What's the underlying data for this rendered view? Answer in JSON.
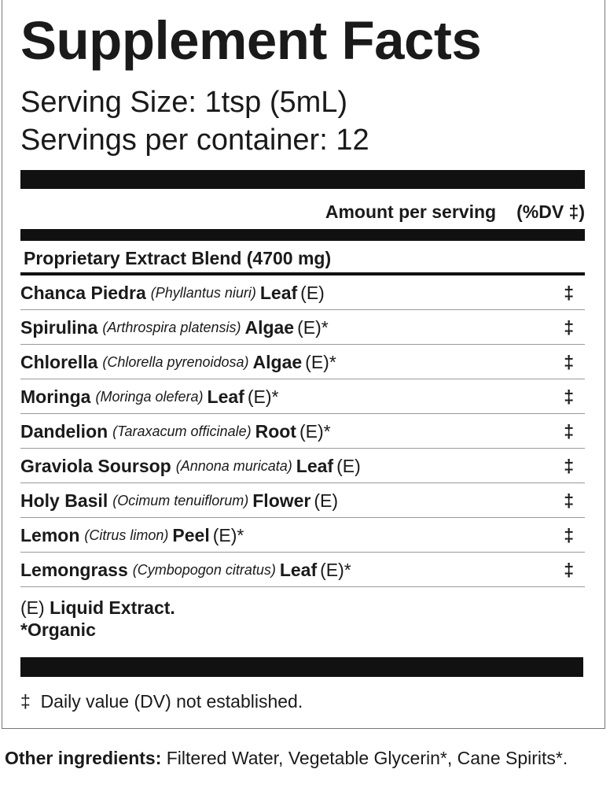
{
  "title": "Supplement Facts",
  "serving_size": "Serving Size: 1tsp (5mL)",
  "servings_label": "Servings per container:",
  "servings_value": "12",
  "header": {
    "amount": "Amount per serving",
    "dv": "(%DV ‡)"
  },
  "blend": "Proprietary Extract Blend (4700 mg)",
  "ingredients": [
    {
      "name": "Chanca Piedra",
      "latin": "(Phyllantus niuri)",
      "part": "Leaf",
      "suffix": "(E)",
      "dv": "‡"
    },
    {
      "name": "Spirulina",
      "latin": "(Arthrospira platensis)",
      "part": "Algae",
      "suffix": "(E)*",
      "dv": "‡"
    },
    {
      "name": "Chlorella",
      "latin": "(Chlorella pyrenoidosa)",
      "part": "Algae",
      "suffix": "(E)*",
      "dv": "‡"
    },
    {
      "name": "Moringa",
      "latin": "(Moringa olefera)",
      "part": "Leaf",
      "suffix": "(E)*",
      "dv": "‡"
    },
    {
      "name": "Dandelion",
      "latin": "(Taraxacum officinale)",
      "part": "Root",
      "suffix": "(E)*",
      "dv": "‡"
    },
    {
      "name": "Graviola Soursop",
      "latin": "(Annona muricata)",
      "part": "Leaf",
      "suffix": "(E)",
      "dv": "‡"
    },
    {
      "name": "Holy Basil",
      "latin": "(Ocimum tenuiflorum)",
      "part": "Flower",
      "suffix": "(E)",
      "dv": "‡"
    },
    {
      "name": "Lemon",
      "latin": "(Citrus limon)",
      "part": "Peel",
      "suffix": "(E)*",
      "dv": "‡"
    },
    {
      "name": "Lemongrass",
      "latin": "(Cymbopogon citratus)",
      "part": "Leaf",
      "suffix": "(E)*",
      "dv": "‡"
    }
  ],
  "footnotes": {
    "e_prefix": "(E)",
    "e_label": "Liquid Extract.",
    "organic": "*Organic"
  },
  "dv_note": "‡  Daily value (DV) not established.",
  "other": {
    "label": "Other ingredients:",
    "text": " Filtered Water, Vegetable Glycerin*, Cane Spirits*."
  }
}
